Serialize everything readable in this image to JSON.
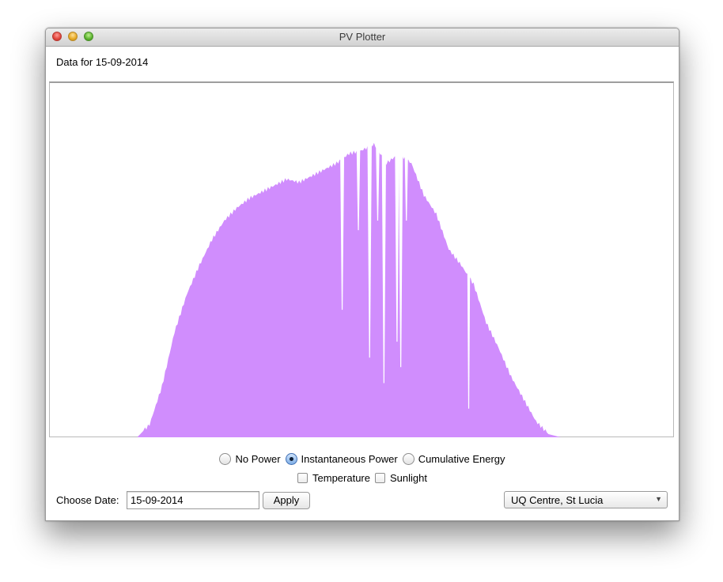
{
  "window": {
    "title": "PV Plotter"
  },
  "header": {
    "date_text": "Data for 15-09-2014"
  },
  "chart_data": {
    "type": "area",
    "title": "",
    "xlabel": "",
    "ylabel": "",
    "ylim": [
      0,
      1
    ],
    "color": "#d08dfd",
    "x": [
      0,
      2,
      4,
      6,
      8,
      10,
      12,
      14,
      16,
      18,
      20,
      22,
      24,
      26,
      28,
      30,
      32,
      34,
      36,
      38,
      40,
      42,
      44,
      46,
      48,
      50,
      52,
      54,
      56,
      58,
      60,
      62,
      64,
      66,
      68,
      70,
      72,
      74,
      76,
      78,
      80,
      82,
      84,
      86,
      88,
      90,
      92,
      94,
      96,
      98,
      100
    ],
    "values": [
      0,
      0,
      0,
      0,
      0,
      0,
      0,
      0,
      0.04,
      0.16,
      0.33,
      0.45,
      0.54,
      0.62,
      0.68,
      0.72,
      0.75,
      0.77,
      0.79,
      0.81,
      0.8,
      0.82,
      0.84,
      0.86,
      0.89,
      0.9,
      0.92,
      0.86,
      0.89,
      0.86,
      0.76,
      0.7,
      0.59,
      0.54,
      0.48,
      0.36,
      0.28,
      0.19,
      0.12,
      0.05,
      0.01,
      0,
      0,
      0,
      0,
      0,
      0,
      0,
      0,
      0,
      0
    ],
    "dips": [
      {
        "x": 46.9,
        "value": 0.4
      },
      {
        "x": 49.5,
        "value": 0.65
      },
      {
        "x": 51.3,
        "value": 0.25
      },
      {
        "x": 52.6,
        "value": 0.68
      },
      {
        "x": 53.6,
        "value": 0.17
      },
      {
        "x": 55.7,
        "value": 0.3
      },
      {
        "x": 56.3,
        "value": 0.22
      },
      {
        "x": 57.2,
        "value": 0.68
      },
      {
        "x": 67.2,
        "value": 0.09
      }
    ]
  },
  "view_options": {
    "radios": [
      {
        "label": "No Power",
        "selected": false
      },
      {
        "label": "Instantaneous Power",
        "selected": true
      },
      {
        "label": "Cumulative Energy",
        "selected": false
      }
    ],
    "checks": [
      {
        "label": "Temperature",
        "checked": false
      },
      {
        "label": "Sunlight",
        "checked": false
      }
    ]
  },
  "controls": {
    "date_label": "Choose Date:",
    "date_value": "15-09-2014",
    "apply_label": "Apply",
    "location_value": "UQ Centre, St Lucia",
    "location_arrow": "▼"
  }
}
